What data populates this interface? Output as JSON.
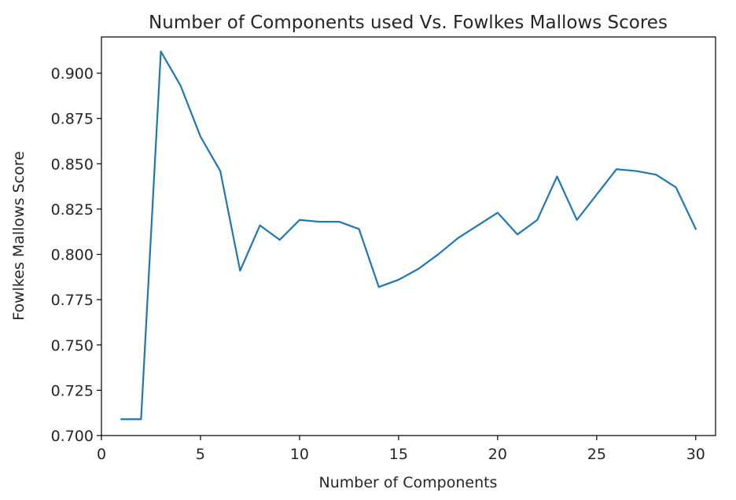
{
  "chart_data": {
    "type": "line",
    "title": "Number of Components used Vs. Fowlkes Mallows Scores",
    "xlabel": "Number of Components",
    "ylabel": "Fowlkes Mallows Score",
    "xlim": [
      0,
      31
    ],
    "ylim": [
      0.7,
      0.92
    ],
    "xticks": [
      0,
      5,
      10,
      15,
      20,
      25,
      30
    ],
    "yticks": [
      0.7,
      0.725,
      0.75,
      0.775,
      0.8,
      0.825,
      0.85,
      0.875,
      0.9
    ],
    "xtick_labels": [
      "0",
      "5",
      "10",
      "15",
      "20",
      "25",
      "30"
    ],
    "ytick_labels": [
      "0.700",
      "0.725",
      "0.750",
      "0.775",
      "0.800",
      "0.825",
      "0.850",
      "0.875",
      "0.900"
    ],
    "grid": false,
    "line_color": "#1f77b4",
    "series": [
      {
        "x": [
          1,
          2,
          3,
          4,
          5,
          6,
          7,
          8,
          9,
          10,
          11,
          12,
          13,
          14,
          15,
          16,
          17,
          18,
          19,
          20,
          21,
          22,
          23,
          24,
          25,
          26,
          27,
          28,
          29,
          30
        ],
        "values": [
          0.709,
          0.709,
          0.912,
          0.893,
          0.865,
          0.846,
          0.791,
          0.816,
          0.808,
          0.819,
          0.818,
          0.818,
          0.814,
          0.782,
          0.786,
          0.792,
          0.8,
          0.809,
          0.816,
          0.823,
          0.811,
          0.819,
          0.843,
          0.819,
          0.833,
          0.847,
          0.846,
          0.844,
          0.837,
          0.814
        ]
      }
    ]
  }
}
